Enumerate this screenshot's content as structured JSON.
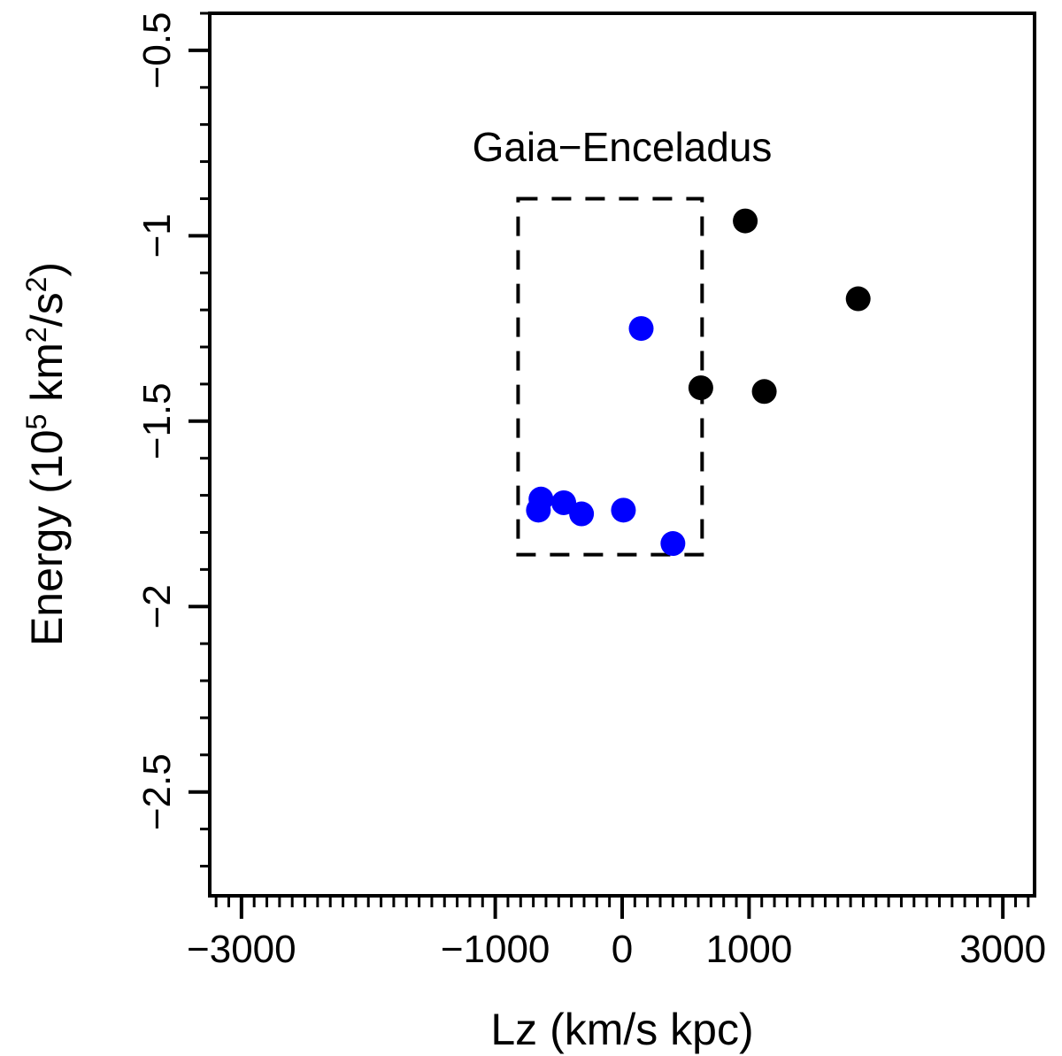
{
  "chart_data": {
    "type": "scatter",
    "xlabel": "Lz (km/s kpc)",
    "ylabel": "Energy (10^5 km^2/s^2)",
    "ylabel_parts": [
      "Energy (10",
      "5",
      " km",
      "2",
      "/s",
      "2",
      ")"
    ],
    "xlim": [
      -3250,
      3250
    ],
    "ylim": [
      -2.78,
      -0.4
    ],
    "x_major_ticks": [
      -3000,
      -1000,
      0,
      1000,
      3000
    ],
    "x_major_tick_labels": [
      "−3000",
      "−1000",
      "0",
      "1000",
      "3000"
    ],
    "x_minor_tick_step": 100,
    "y_major_ticks": [
      -0.5,
      -1,
      -1.5,
      -2,
      -2.5
    ],
    "y_major_tick_labels": [
      "−0.5",
      "−1",
      "−1.5",
      "−2",
      "−2.5"
    ],
    "y_minor_tick_step": 0.1,
    "grid": false,
    "annotation": "Gaia−Enceladus",
    "region_box": {
      "x": [
        -820,
        630
      ],
      "y": [
        -1.86,
        -0.9
      ]
    },
    "series": [
      {
        "color": "#0000ff",
        "points": [
          [
            -640,
            -1.71
          ],
          [
            -660,
            -1.74
          ],
          [
            -460,
            -1.72
          ],
          [
            -320,
            -1.75
          ],
          [
            10,
            -1.74
          ],
          [
            400,
            -1.83
          ],
          [
            150,
            -1.25
          ]
        ]
      },
      {
        "color": "#000000",
        "points": [
          [
            970,
            -0.96
          ],
          [
            1860,
            -1.17
          ],
          [
            620,
            -1.41
          ],
          [
            1120,
            -1.42
          ]
        ]
      }
    ]
  }
}
